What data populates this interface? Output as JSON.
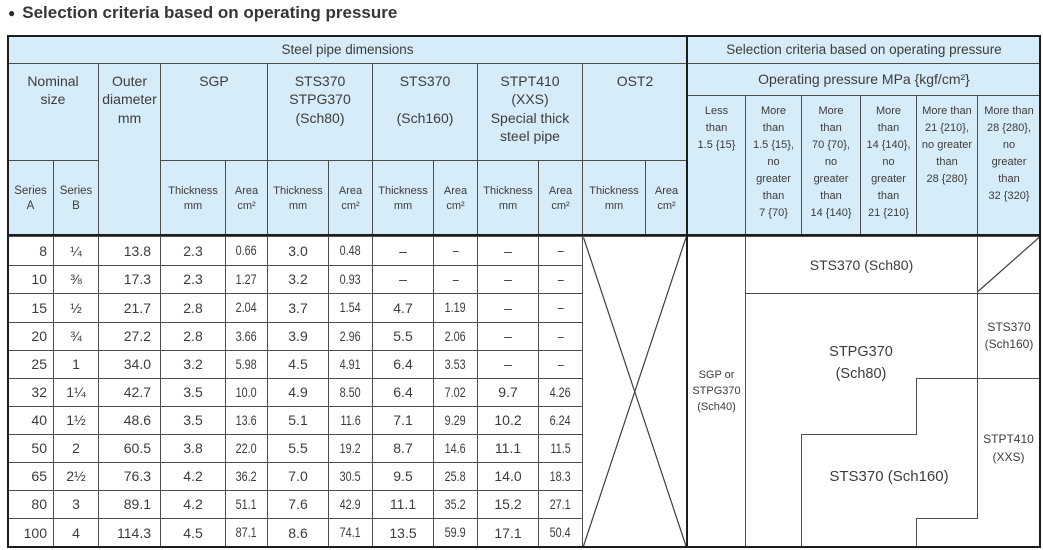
{
  "title": "Selection criteria based on operating pressure",
  "title_bullet": "●",
  "header": {
    "steel_pipe": "Steel pipe dimensions",
    "selection": "Selection criteria based on operating pressure",
    "nominal_size": "Nominal\nsize",
    "outer_diameter": "Outer\ndiameter\nmm",
    "sgp": "SGP",
    "sch80_group": "STS370\nSTPG370\n(Sch80)",
    "sch160_group": "STS370\n\n(Sch160)",
    "stpt_group": "STPT410\n(XXS)\nSpecial thick\nsteel pipe",
    "ost2_group": "OST2",
    "series_a": "Series\nA",
    "series_b": "Series\nB",
    "thickness": "Thickness\nmm",
    "area": "Area\ncm²",
    "operating_pressure": "Operating pressure MPa {kgf/cm²}",
    "pressure_cols": [
      "Less\nthan\n1.5 {15}",
      "More\nthan\n1.5 {15},\nno\ngreater\nthan\n7 {70}",
      "More\nthan\n70 {70},\nno\ngreater\nthan\n14 {140}",
      "More\nthan\n14 {140},\nno\ngreater\nthan\n21 {210}",
      "More than\n21 {210},\nno greater\nthan\n28 {280}",
      "More than\n28 {280},\nno\ngreater\nthan\n32 {320}"
    ]
  },
  "rows": [
    {
      "a": "8",
      "b": "¼",
      "od": "13.8",
      "sgp_t": "2.3",
      "sgp_a": "0.66",
      "s80_t": "3.0",
      "s80_a": "0.48",
      "s160_t": "–",
      "s160_a": "–",
      "stpt_t": "–",
      "stpt_a": "–"
    },
    {
      "a": "10",
      "b": "⅜",
      "od": "17.3",
      "sgp_t": "2.3",
      "sgp_a": "1.27",
      "s80_t": "3.2",
      "s80_a": "0.93",
      "s160_t": "–",
      "s160_a": "–",
      "stpt_t": "–",
      "stpt_a": "–"
    },
    {
      "a": "15",
      "b": "½",
      "od": "21.7",
      "sgp_t": "2.8",
      "sgp_a": "2.04",
      "s80_t": "3.7",
      "s80_a": "1.54",
      "s160_t": "4.7",
      "s160_a": "1.19",
      "stpt_t": "–",
      "stpt_a": "–"
    },
    {
      "a": "20",
      "b": "¾",
      "od": "27.2",
      "sgp_t": "2.8",
      "sgp_a": "3.66",
      "s80_t": "3.9",
      "s80_a": "2.96",
      "s160_t": "5.5",
      "s160_a": "2.06",
      "stpt_t": "–",
      "stpt_a": "–"
    },
    {
      "a": "25",
      "b": "1",
      "od": "34.0",
      "sgp_t": "3.2",
      "sgp_a": "5.98",
      "s80_t": "4.5",
      "s80_a": "4.91",
      "s160_t": "6.4",
      "s160_a": "3.53",
      "stpt_t": "–",
      "stpt_a": "–"
    },
    {
      "a": "32",
      "b": "1¼",
      "od": "42.7",
      "sgp_t": "3.5",
      "sgp_a": "10.0",
      "s80_t": "4.9",
      "s80_a": "8.50",
      "s160_t": "6.4",
      "s160_a": "7.02",
      "stpt_t": "9.7",
      "stpt_a": "4.26"
    },
    {
      "a": "40",
      "b": "1½",
      "od": "48.6",
      "sgp_t": "3.5",
      "sgp_a": "13.6",
      "s80_t": "5.1",
      "s80_a": "11.6",
      "s160_t": "7.1",
      "s160_a": "9.29",
      "stpt_t": "10.2",
      "stpt_a": "6.24"
    },
    {
      "a": "50",
      "b": "2",
      "od": "60.5",
      "sgp_t": "3.8",
      "sgp_a": "22.0",
      "s80_t": "5.5",
      "s80_a": "19.2",
      "s160_t": "8.7",
      "s160_a": "14.6",
      "stpt_t": "11.1",
      "stpt_a": "11.5"
    },
    {
      "a": "65",
      "b": "2½",
      "od": "76.3",
      "sgp_t": "4.2",
      "sgp_a": "36.2",
      "s80_t": "7.0",
      "s80_a": "30.5",
      "s160_t": "9.5",
      "s160_a": "25.8",
      "stpt_t": "14.0",
      "stpt_a": "18.3"
    },
    {
      "a": "80",
      "b": "3",
      "od": "89.1",
      "sgp_t": "4.2",
      "sgp_a": "51.1",
      "s80_t": "7.6",
      "s80_a": "42.9",
      "s160_t": "11.1",
      "s160_a": "35.2",
      "stpt_t": "15.2",
      "stpt_a": "27.1"
    },
    {
      "a": "100",
      "b": "4",
      "od": "114.3",
      "sgp_t": "4.5",
      "sgp_a": "87.1",
      "s80_t": "8.6",
      "s80_a": "74.1",
      "s160_t": "13.5",
      "s160_a": "59.9",
      "stpt_t": "17.1",
      "stpt_a": "50.4"
    }
  ],
  "regions": {
    "sgp": "SGP or\nSTPG370\n(Sch40)",
    "sts370_sch80": "STS370 (Sch80)",
    "stpg370_sch80": "STPG370\n(Sch80)",
    "sts370_sch160_col": "STS370\n(Sch160)",
    "sts370_sch160": "STS370 (Sch160)",
    "stpt410": "STPT410\n(XXS)"
  },
  "colors": {
    "header_bg": "#d6ecf8",
    "grid_line": "#4d4d4d",
    "outer_border": "#1d1d1d",
    "text": "#3c3c3c"
  }
}
